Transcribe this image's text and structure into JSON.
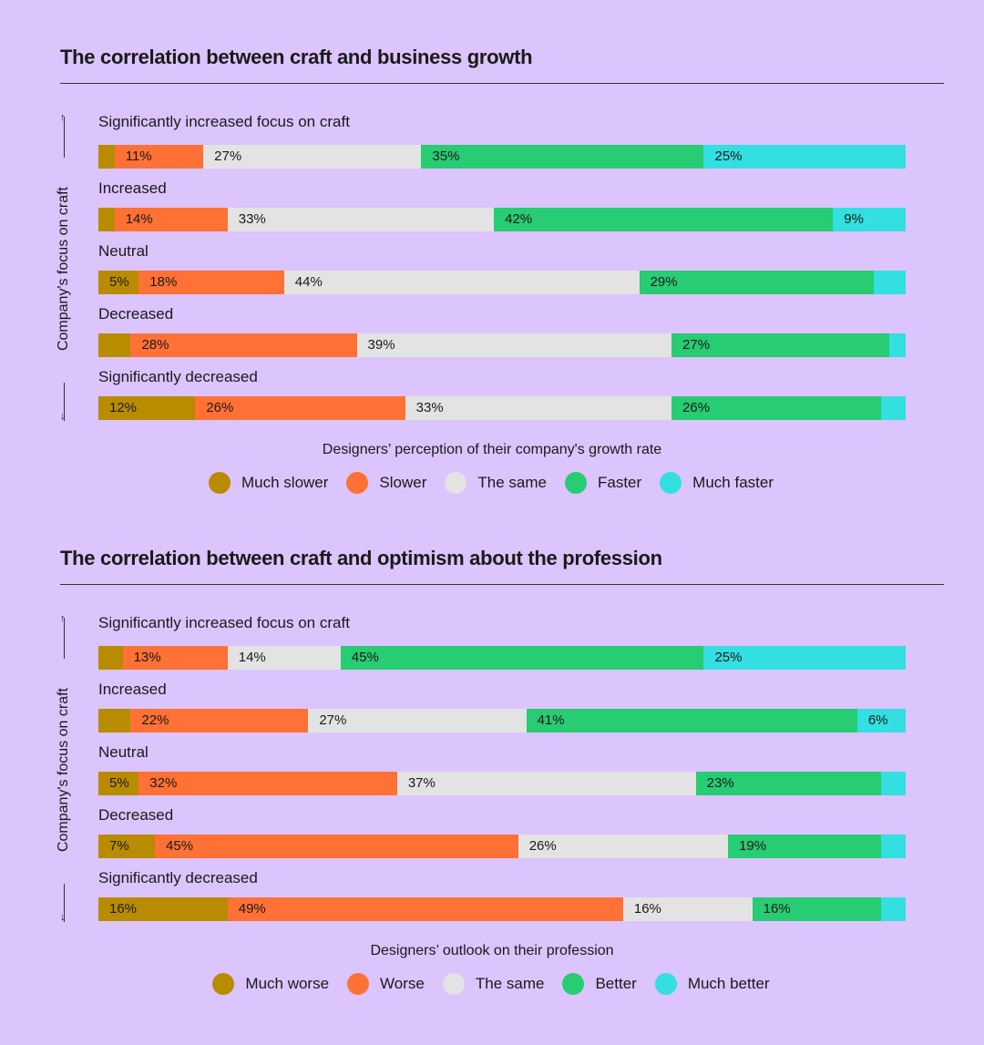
{
  "colors": [
    "#b98c00",
    "#ff7135",
    "#e3e3e3",
    "#27cc73",
    "#33dfe0"
  ],
  "chart_data": [
    {
      "type": "bar",
      "orientation": "horizontal",
      "stacked": true,
      "title": "The correlation between craft and business growth",
      "ylabel": "Company's focus on craft",
      "xlabel": "Designers’ perception of their company's growth rate",
      "categories": [
        "Significantly increased focus on craft",
        "Increased",
        "Neutral",
        "Decreased",
        "Significantly decreased"
      ],
      "series": [
        {
          "name": "Much slower",
          "values": [
            2,
            2,
            5,
            4,
            12
          ]
        },
        {
          "name": "Slower",
          "values": [
            11,
            14,
            18,
            28,
            26
          ]
        },
        {
          "name": "The same",
          "values": [
            27,
            33,
            44,
            39,
            33
          ]
        },
        {
          "name": "Faster",
          "values": [
            35,
            42,
            29,
            27,
            26
          ]
        },
        {
          "name": "Much faster",
          "values": [
            25,
            9,
            4,
            2,
            3
          ]
        }
      ],
      "legend": "bottom"
    },
    {
      "type": "bar",
      "orientation": "horizontal",
      "stacked": true,
      "title": "The correlation between craft and optimism about the profession",
      "ylabel": "Company's focus on craft",
      "xlabel": "Designers’ outlook on their profession",
      "categories": [
        "Significantly increased focus on craft",
        "Increased",
        "Neutral",
        "Decreased",
        "Significantly decreased"
      ],
      "series": [
        {
          "name": "Much worse",
          "values": [
            3,
            4,
            5,
            7,
            16
          ]
        },
        {
          "name": "Worse",
          "values": [
            13,
            22,
            32,
            45,
            49
          ]
        },
        {
          "name": "The same",
          "values": [
            14,
            27,
            37,
            26,
            16
          ]
        },
        {
          "name": "Better",
          "values": [
            45,
            41,
            23,
            19,
            16
          ]
        },
        {
          "name": "Much better",
          "values": [
            25,
            6,
            3,
            3,
            3
          ]
        }
      ],
      "legend": "bottom"
    }
  ]
}
